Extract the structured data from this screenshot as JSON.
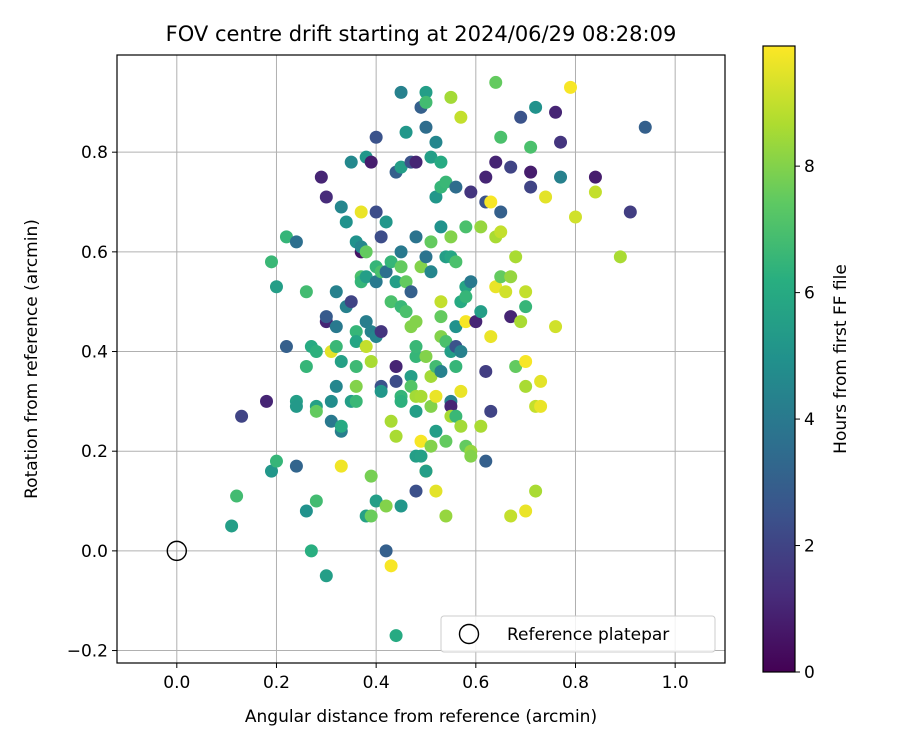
{
  "chart_data": {
    "type": "scatter",
    "title": "FOV centre drift starting at 2024/06/29 08:28:09",
    "xlabel": "Angular distance from reference (arcmin)",
    "ylabel": "Rotation from reference (arcmin)",
    "xlim": [
      -0.12,
      1.1
    ],
    "ylim": [
      -0.225,
      0.995
    ],
    "xticks": [
      0.0,
      0.2,
      0.4,
      0.6,
      0.8,
      1.0
    ],
    "xtick_labels": [
      "0.0",
      "0.2",
      "0.4",
      "0.6",
      "0.8",
      "1.0"
    ],
    "yticks": [
      -0.2,
      0.0,
      0.2,
      0.4,
      0.6,
      0.8
    ],
    "ytick_labels": [
      "−0.2",
      "0.0",
      "0.2",
      "0.4",
      "0.6",
      "0.8"
    ],
    "grid": true,
    "colormap": "viridis",
    "colorbar": {
      "label": "Hours from first FF file",
      "range": [
        0,
        9.9
      ],
      "ticks": [
        0,
        2,
        4,
        6,
        8
      ],
      "tick_labels": [
        "0",
        "2",
        "4",
        "6",
        "8"
      ]
    },
    "reference": {
      "name": "Reference platepar",
      "x": 0.0,
      "y": 0.0
    },
    "legend": {
      "position": "lower-right",
      "entries": [
        "Reference platepar"
      ]
    },
    "points": [
      {
        "x": 0.13,
        "y": 0.27,
        "h": 2.0
      },
      {
        "x": 0.18,
        "y": 0.3,
        "h": 1.0
      },
      {
        "x": 0.11,
        "y": 0.05,
        "h": 5.5
      },
      {
        "x": 0.12,
        "y": 0.11,
        "h": 6.8
      },
      {
        "x": 0.19,
        "y": 0.16,
        "h": 5.2
      },
      {
        "x": 0.2,
        "y": 0.18,
        "h": 6.5
      },
      {
        "x": 0.24,
        "y": 0.17,
        "h": 3.2
      },
      {
        "x": 0.26,
        "y": 0.08,
        "h": 5.0
      },
      {
        "x": 0.27,
        "y": 0.0,
        "h": 6.2
      },
      {
        "x": 0.28,
        "y": 0.1,
        "h": 6.8
      },
      {
        "x": 0.3,
        "y": -0.05,
        "h": 5.5
      },
      {
        "x": 0.19,
        "y": 0.58,
        "h": 6.6
      },
      {
        "x": 0.2,
        "y": 0.53,
        "h": 5.5
      },
      {
        "x": 0.22,
        "y": 0.41,
        "h": 3.0
      },
      {
        "x": 0.22,
        "y": 0.63,
        "h": 6.5
      },
      {
        "x": 0.24,
        "y": 0.62,
        "h": 3.6
      },
      {
        "x": 0.24,
        "y": 0.3,
        "h": 5.5
      },
      {
        "x": 0.24,
        "y": 0.29,
        "h": 5.3
      },
      {
        "x": 0.26,
        "y": 0.37,
        "h": 6.5
      },
      {
        "x": 0.26,
        "y": 0.52,
        "h": 6.8
      },
      {
        "x": 0.27,
        "y": 0.41,
        "h": 6.0
      },
      {
        "x": 0.28,
        "y": 0.4,
        "h": 6.3
      },
      {
        "x": 0.28,
        "y": 0.29,
        "h": 5.6
      },
      {
        "x": 0.28,
        "y": 0.28,
        "h": 7.5
      },
      {
        "x": 0.29,
        "y": 0.75,
        "h": 1.0
      },
      {
        "x": 0.3,
        "y": 0.71,
        "h": 1.2
      },
      {
        "x": 0.3,
        "y": 0.46,
        "h": 1.0
      },
      {
        "x": 0.3,
        "y": 0.47,
        "h": 2.8
      },
      {
        "x": 0.31,
        "y": 0.26,
        "h": 4.0
      },
      {
        "x": 0.31,
        "y": 0.3,
        "h": 4.8
      },
      {
        "x": 0.31,
        "y": 0.4,
        "h": 9.5
      },
      {
        "x": 0.32,
        "y": 0.52,
        "h": 4.3
      },
      {
        "x": 0.32,
        "y": 0.33,
        "h": 4.5
      },
      {
        "x": 0.32,
        "y": 0.45,
        "h": 4.0
      },
      {
        "x": 0.32,
        "y": 0.41,
        "h": 6.6
      },
      {
        "x": 0.33,
        "y": 0.24,
        "h": 4.2
      },
      {
        "x": 0.33,
        "y": 0.25,
        "h": 6.0
      },
      {
        "x": 0.33,
        "y": 0.38,
        "h": 5.6
      },
      {
        "x": 0.33,
        "y": 0.17,
        "h": 9.7
      },
      {
        "x": 0.33,
        "y": 0.69,
        "h": 4.5
      },
      {
        "x": 0.34,
        "y": 0.66,
        "h": 5.0
      },
      {
        "x": 0.34,
        "y": 0.49,
        "h": 4.3
      },
      {
        "x": 0.35,
        "y": 0.78,
        "h": 4.6
      },
      {
        "x": 0.35,
        "y": 0.5,
        "h": 2.0
      },
      {
        "x": 0.35,
        "y": 0.3,
        "h": 5.5
      },
      {
        "x": 0.36,
        "y": 0.33,
        "h": 8.0
      },
      {
        "x": 0.36,
        "y": 0.44,
        "h": 6.5
      },
      {
        "x": 0.36,
        "y": 0.3,
        "h": 6.6
      },
      {
        "x": 0.36,
        "y": 0.42,
        "h": 5.8
      },
      {
        "x": 0.36,
        "y": 0.37,
        "h": 6.7
      },
      {
        "x": 0.36,
        "y": 0.62,
        "h": 5.0
      },
      {
        "x": 0.37,
        "y": 0.68,
        "h": 9.6
      },
      {
        "x": 0.37,
        "y": 0.6,
        "h": 0.5
      },
      {
        "x": 0.37,
        "y": 0.61,
        "h": 4.5
      },
      {
        "x": 0.37,
        "y": 0.55,
        "h": 7.0
      },
      {
        "x": 0.37,
        "y": 0.54,
        "h": 6.5
      },
      {
        "x": 0.38,
        "y": 0.79,
        "h": 5.2
      },
      {
        "x": 0.38,
        "y": 0.46,
        "h": 4.2
      },
      {
        "x": 0.38,
        "y": 0.41,
        "h": 9.0
      },
      {
        "x": 0.38,
        "y": 0.07,
        "h": 5.6
      },
      {
        "x": 0.38,
        "y": 0.6,
        "h": 7.5
      },
      {
        "x": 0.38,
        "y": 0.55,
        "h": 5.5
      },
      {
        "x": 0.39,
        "y": 0.78,
        "h": 0.8
      },
      {
        "x": 0.39,
        "y": 0.44,
        "h": 4.3
      },
      {
        "x": 0.39,
        "y": 0.38,
        "h": 8.6
      },
      {
        "x": 0.39,
        "y": 0.15,
        "h": 7.8
      },
      {
        "x": 0.39,
        "y": 0.07,
        "h": 7.6
      },
      {
        "x": 0.4,
        "y": 0.68,
        "h": 2.3
      },
      {
        "x": 0.4,
        "y": 0.54,
        "h": 4.0
      },
      {
        "x": 0.4,
        "y": 0.43,
        "h": 4.5
      },
      {
        "x": 0.4,
        "y": 0.1,
        "h": 5.5
      },
      {
        "x": 0.4,
        "y": 0.57,
        "h": 6.5
      },
      {
        "x": 0.4,
        "y": 0.83,
        "h": 2.5
      },
      {
        "x": 0.41,
        "y": 0.63,
        "h": 2.3
      },
      {
        "x": 0.41,
        "y": 0.44,
        "h": 1.5
      },
      {
        "x": 0.41,
        "y": 0.33,
        "h": 2.5
      },
      {
        "x": 0.41,
        "y": 0.32,
        "h": 5.2
      },
      {
        "x": 0.41,
        "y": 0.56,
        "h": 7.0
      },
      {
        "x": 0.42,
        "y": 0.66,
        "h": 5.2
      },
      {
        "x": 0.42,
        "y": 0.09,
        "h": 8.0
      },
      {
        "x": 0.42,
        "y": 0.56,
        "h": 3.6
      },
      {
        "x": 0.42,
        "y": 0.0,
        "h": 3.0
      },
      {
        "x": 0.43,
        "y": 0.58,
        "h": 6.5
      },
      {
        "x": 0.43,
        "y": 0.5,
        "h": 7.0
      },
      {
        "x": 0.43,
        "y": 0.26,
        "h": 8.6
      },
      {
        "x": 0.43,
        "y": -0.03,
        "h": 9.8
      },
      {
        "x": 0.44,
        "y": 0.37,
        "h": 1.0
      },
      {
        "x": 0.44,
        "y": 0.34,
        "h": 2.3
      },
      {
        "x": 0.44,
        "y": 0.54,
        "h": 5.5
      },
      {
        "x": 0.44,
        "y": 0.76,
        "h": 3.0
      },
      {
        "x": 0.44,
        "y": 0.23,
        "h": 8.6
      },
      {
        "x": 0.44,
        "y": -0.17,
        "h": 6.0
      },
      {
        "x": 0.45,
        "y": 0.92,
        "h": 4.3
      },
      {
        "x": 0.45,
        "y": 0.77,
        "h": 5.5
      },
      {
        "x": 0.45,
        "y": 0.6,
        "h": 4.0
      },
      {
        "x": 0.45,
        "y": 0.57,
        "h": 7.5
      },
      {
        "x": 0.45,
        "y": 0.49,
        "h": 6.6
      },
      {
        "x": 0.45,
        "y": 0.31,
        "h": 6.5
      },
      {
        "x": 0.45,
        "y": 0.3,
        "h": 6.3
      },
      {
        "x": 0.45,
        "y": 0.09,
        "h": 5.2
      },
      {
        "x": 0.46,
        "y": 0.84,
        "h": 5.2
      },
      {
        "x": 0.46,
        "y": 0.48,
        "h": 7.0
      },
      {
        "x": 0.46,
        "y": 0.54,
        "h": 7.5
      },
      {
        "x": 0.47,
        "y": 0.78,
        "h": 2.5
      },
      {
        "x": 0.47,
        "y": 0.35,
        "h": 5.5
      },
      {
        "x": 0.47,
        "y": 0.45,
        "h": 8.0
      },
      {
        "x": 0.47,
        "y": 0.33,
        "h": 7.2
      },
      {
        "x": 0.47,
        "y": 0.52,
        "h": 3.0
      },
      {
        "x": 0.48,
        "y": 0.78,
        "h": 1.0
      },
      {
        "x": 0.48,
        "y": 0.63,
        "h": 3.8
      },
      {
        "x": 0.48,
        "y": 0.46,
        "h": 8.0
      },
      {
        "x": 0.48,
        "y": 0.39,
        "h": 6.5
      },
      {
        "x": 0.48,
        "y": 0.28,
        "h": 5.5
      },
      {
        "x": 0.48,
        "y": 0.19,
        "h": 5.5
      },
      {
        "x": 0.48,
        "y": 0.12,
        "h": 2.4
      },
      {
        "x": 0.48,
        "y": 0.31,
        "h": 8.5
      },
      {
        "x": 0.48,
        "y": 0.41,
        "h": 6.6
      },
      {
        "x": 0.49,
        "y": 0.89,
        "h": 3.0
      },
      {
        "x": 0.49,
        "y": 0.57,
        "h": 8.0
      },
      {
        "x": 0.49,
        "y": 0.31,
        "h": 8.6
      },
      {
        "x": 0.49,
        "y": 0.19,
        "h": 5.6
      },
      {
        "x": 0.49,
        "y": 0.22,
        "h": 9.8
      },
      {
        "x": 0.5,
        "y": 0.92,
        "h": 5.5
      },
      {
        "x": 0.5,
        "y": 0.9,
        "h": 6.8
      },
      {
        "x": 0.5,
        "y": 0.85,
        "h": 3.5
      },
      {
        "x": 0.5,
        "y": 0.59,
        "h": 3.8
      },
      {
        "x": 0.5,
        "y": 0.39,
        "h": 8.0
      },
      {
        "x": 0.5,
        "y": 0.16,
        "h": 9.8
      },
      {
        "x": 0.5,
        "y": 0.16,
        "h": 5.5
      },
      {
        "x": 0.51,
        "y": 0.79,
        "h": 5.5
      },
      {
        "x": 0.51,
        "y": 0.62,
        "h": 7.5
      },
      {
        "x": 0.51,
        "y": 0.56,
        "h": 4.5
      },
      {
        "x": 0.51,
        "y": 0.35,
        "h": 8.5
      },
      {
        "x": 0.51,
        "y": 0.29,
        "h": 8.0
      },
      {
        "x": 0.51,
        "y": 0.21,
        "h": 8.0
      },
      {
        "x": 0.52,
        "y": 0.71,
        "h": 5.2
      },
      {
        "x": 0.52,
        "y": 0.24,
        "h": 5.5
      },
      {
        "x": 0.52,
        "y": 0.12,
        "h": 9.5
      },
      {
        "x": 0.52,
        "y": 0.82,
        "h": 4.5
      },
      {
        "x": 0.52,
        "y": 0.37,
        "h": 6.8
      },
      {
        "x": 0.52,
        "y": 0.31,
        "h": 9.6
      },
      {
        "x": 0.53,
        "y": 0.78,
        "h": 6.0
      },
      {
        "x": 0.53,
        "y": 0.73,
        "h": 6.5
      },
      {
        "x": 0.53,
        "y": 0.65,
        "h": 5.0
      },
      {
        "x": 0.53,
        "y": 0.5,
        "h": 9.0
      },
      {
        "x": 0.53,
        "y": 0.47,
        "h": 7.5
      },
      {
        "x": 0.53,
        "y": 0.43,
        "h": 8.0
      },
      {
        "x": 0.53,
        "y": 0.36,
        "h": 4.3
      },
      {
        "x": 0.54,
        "y": 0.74,
        "h": 6.6
      },
      {
        "x": 0.54,
        "y": 0.59,
        "h": 5.5
      },
      {
        "x": 0.54,
        "y": 0.42,
        "h": 7.0
      },
      {
        "x": 0.54,
        "y": 0.22,
        "h": 7.5
      },
      {
        "x": 0.54,
        "y": 0.07,
        "h": 8.3
      },
      {
        "x": 0.55,
        "y": 0.91,
        "h": 8.5
      },
      {
        "x": 0.55,
        "y": 0.63,
        "h": 8.0
      },
      {
        "x": 0.55,
        "y": 0.59,
        "h": 5.8
      },
      {
        "x": 0.55,
        "y": 0.4,
        "h": 5.5
      },
      {
        "x": 0.55,
        "y": 0.3,
        "h": 4.3
      },
      {
        "x": 0.55,
        "y": 0.29,
        "h": 1.0
      },
      {
        "x": 0.55,
        "y": 0.27,
        "h": 8.6
      },
      {
        "x": 0.56,
        "y": 0.73,
        "h": 3.5
      },
      {
        "x": 0.56,
        "y": 0.58,
        "h": 7.0
      },
      {
        "x": 0.56,
        "y": 0.45,
        "h": 5.0
      },
      {
        "x": 0.56,
        "y": 0.41,
        "h": 2.5
      },
      {
        "x": 0.56,
        "y": 0.37,
        "h": 6.5
      },
      {
        "x": 0.56,
        "y": 0.27,
        "h": 6.6
      },
      {
        "x": 0.57,
        "y": 0.87,
        "h": 9.0
      },
      {
        "x": 0.57,
        "y": 0.5,
        "h": 6.0
      },
      {
        "x": 0.57,
        "y": 0.4,
        "h": 4.3
      },
      {
        "x": 0.57,
        "y": 0.32,
        "h": 9.6
      },
      {
        "x": 0.57,
        "y": 0.25,
        "h": 8.5
      },
      {
        "x": 0.58,
        "y": 0.65,
        "h": 7.0
      },
      {
        "x": 0.58,
        "y": 0.53,
        "h": 5.8
      },
      {
        "x": 0.58,
        "y": 0.51,
        "h": 6.5
      },
      {
        "x": 0.58,
        "y": 0.46,
        "h": 9.8
      },
      {
        "x": 0.58,
        "y": 0.21,
        "h": 7.5
      },
      {
        "x": 0.59,
        "y": 0.72,
        "h": 1.5
      },
      {
        "x": 0.59,
        "y": 0.54,
        "h": 4.0
      },
      {
        "x": 0.59,
        "y": 0.2,
        "h": 8.3
      },
      {
        "x": 0.59,
        "y": 0.19,
        "h": 8.0
      },
      {
        "x": 0.6,
        "y": 0.46,
        "h": 1.0
      },
      {
        "x": 0.61,
        "y": 0.48,
        "h": 5.5
      },
      {
        "x": 0.61,
        "y": 0.65,
        "h": 8.3
      },
      {
        "x": 0.61,
        "y": 0.25,
        "h": 8.6
      },
      {
        "x": 0.62,
        "y": 0.75,
        "h": 1.0
      },
      {
        "x": 0.62,
        "y": 0.7,
        "h": 2.5
      },
      {
        "x": 0.62,
        "y": 0.18,
        "h": 3.0
      },
      {
        "x": 0.62,
        "y": 0.36,
        "h": 1.8
      },
      {
        "x": 0.63,
        "y": 0.7,
        "h": 9.8
      },
      {
        "x": 0.63,
        "y": 0.43,
        "h": 9.6
      },
      {
        "x": 0.63,
        "y": 0.28,
        "h": 2.0
      },
      {
        "x": 0.64,
        "y": 0.94,
        "h": 7.5
      },
      {
        "x": 0.64,
        "y": 0.78,
        "h": 1.0
      },
      {
        "x": 0.64,
        "y": 0.63,
        "h": 8.6
      },
      {
        "x": 0.64,
        "y": 0.53,
        "h": 9.6
      },
      {
        "x": 0.65,
        "y": 0.68,
        "h": 3.0
      },
      {
        "x": 0.65,
        "y": 0.64,
        "h": 9.0
      },
      {
        "x": 0.65,
        "y": 0.55,
        "h": 7.5
      },
      {
        "x": 0.65,
        "y": 0.83,
        "h": 7.0
      },
      {
        "x": 0.66,
        "y": 0.52,
        "h": 9.2
      },
      {
        "x": 0.67,
        "y": 0.77,
        "h": 2.0
      },
      {
        "x": 0.67,
        "y": 0.55,
        "h": 8.3
      },
      {
        "x": 0.67,
        "y": 0.47,
        "h": 1.0
      },
      {
        "x": 0.67,
        "y": 0.07,
        "h": 9.0
      },
      {
        "x": 0.68,
        "y": 0.59,
        "h": 8.6
      },
      {
        "x": 0.68,
        "y": 0.37,
        "h": 7.5
      },
      {
        "x": 0.69,
        "y": 0.87,
        "h": 2.5
      },
      {
        "x": 0.69,
        "y": 0.46,
        "h": 8.6
      },
      {
        "x": 0.7,
        "y": 0.52,
        "h": 9.0
      },
      {
        "x": 0.7,
        "y": 0.49,
        "h": 6.5
      },
      {
        "x": 0.7,
        "y": 0.38,
        "h": 9.8
      },
      {
        "x": 0.7,
        "y": 0.33,
        "h": 8.6
      },
      {
        "x": 0.7,
        "y": 0.08,
        "h": 9.6
      },
      {
        "x": 0.71,
        "y": 0.76,
        "h": 0.8
      },
      {
        "x": 0.71,
        "y": 0.73,
        "h": 2.0
      },
      {
        "x": 0.71,
        "y": 0.81,
        "h": 7.0
      },
      {
        "x": 0.72,
        "y": 0.89,
        "h": 5.0
      },
      {
        "x": 0.72,
        "y": 0.29,
        "h": 9.0
      },
      {
        "x": 0.72,
        "y": 0.12,
        "h": 8.6
      },
      {
        "x": 0.73,
        "y": 0.34,
        "h": 9.5
      },
      {
        "x": 0.73,
        "y": 0.29,
        "h": 9.6
      },
      {
        "x": 0.74,
        "y": 0.71,
        "h": 9.5
      },
      {
        "x": 0.76,
        "y": 0.45,
        "h": 9.2
      },
      {
        "x": 0.76,
        "y": 0.88,
        "h": 1.0
      },
      {
        "x": 0.77,
        "y": 0.75,
        "h": 4.3
      },
      {
        "x": 0.77,
        "y": 0.82,
        "h": 1.5
      },
      {
        "x": 0.79,
        "y": 0.93,
        "h": 9.8
      },
      {
        "x": 0.8,
        "y": 0.67,
        "h": 9.2
      },
      {
        "x": 0.84,
        "y": 0.75,
        "h": 0.8
      },
      {
        "x": 0.84,
        "y": 0.72,
        "h": 9.0
      },
      {
        "x": 0.89,
        "y": 0.59,
        "h": 8.6
      },
      {
        "x": 0.91,
        "y": 0.68,
        "h": 1.8
      },
      {
        "x": 0.94,
        "y": 0.85,
        "h": 3.0
      }
    ]
  }
}
